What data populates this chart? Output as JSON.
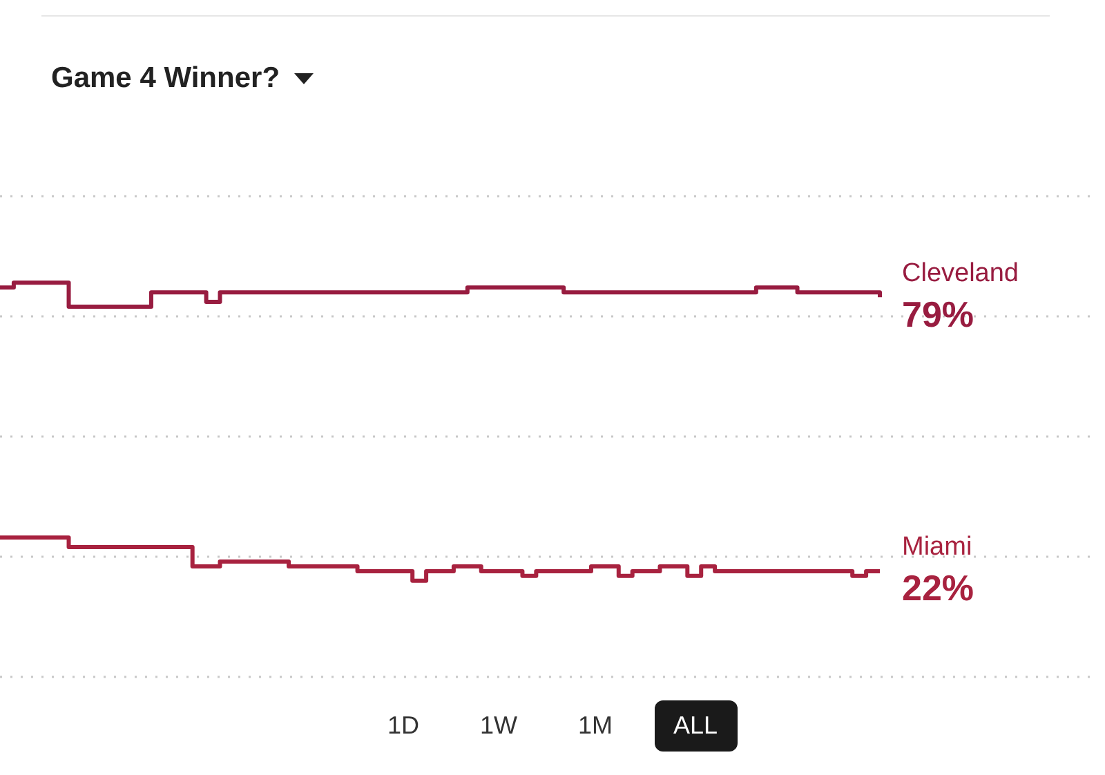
{
  "chart_data": {
    "type": "step",
    "title": "Game 4 Winner?",
    "categories": [
      null,
      null,
      null,
      null,
      null,
      null,
      null,
      null,
      null,
      null,
      null,
      null,
      null,
      null,
      null,
      null,
      null,
      null,
      null,
      null,
      null,
      null,
      null,
      null,
      null,
      null,
      null,
      null,
      null,
      null,
      null,
      null,
      null,
      null,
      null,
      null,
      null,
      null,
      null,
      null,
      null,
      null,
      null,
      null,
      null,
      null,
      null,
      null,
      null,
      null,
      null,
      null,
      null,
      null,
      null,
      null,
      null,
      null,
      null,
      null,
      null,
      null,
      null,
      null,
      null
    ],
    "series": [
      {
        "name": "Cleveland",
        "color": "#981c40",
        "values": [
          81,
          82,
          82,
          82,
          82,
          77,
          77,
          77,
          77,
          77,
          77,
          80,
          80,
          80,
          80,
          78,
          80,
          80,
          80,
          80,
          80,
          80,
          80,
          80,
          80,
          80,
          80,
          80,
          80,
          80,
          80,
          80,
          80,
          80,
          81,
          81,
          81,
          81,
          81,
          81,
          81,
          80,
          80,
          80,
          80,
          80,
          80,
          80,
          80,
          80,
          80,
          80,
          80,
          80,
          80,
          81,
          81,
          81,
          80,
          80,
          80,
          80,
          80,
          80,
          79
        ],
        "value_labels": [
          null,
          null,
          null,
          null,
          null,
          null,
          null,
          null,
          null,
          null,
          null,
          null,
          null,
          null,
          null,
          null,
          null,
          null,
          null,
          null,
          null,
          null,
          null,
          null,
          null,
          null,
          null,
          null,
          null,
          null,
          null,
          null,
          null,
          null,
          null,
          null,
          null,
          null,
          null,
          null,
          null,
          null,
          null,
          null,
          null,
          null,
          null,
          null,
          null,
          null,
          null,
          null,
          null,
          null,
          null,
          null,
          null,
          null,
          null,
          null,
          null,
          null,
          null,
          null,
          "79%"
        ]
      },
      {
        "name": "Miami",
        "color": "#a8223f",
        "values": [
          29,
          29,
          29,
          29,
          29,
          27,
          27,
          27,
          27,
          27,
          27,
          27,
          27,
          27,
          23,
          23,
          24,
          24,
          24,
          24,
          24,
          23,
          23,
          23,
          23,
          23,
          22,
          22,
          22,
          22,
          20,
          22,
          22,
          23,
          23,
          22,
          22,
          22,
          21,
          22,
          22,
          22,
          22,
          23,
          23,
          21,
          22,
          22,
          23,
          23,
          21,
          23,
          22,
          22,
          22,
          22,
          22,
          22,
          22,
          22,
          22,
          22,
          21,
          22,
          22
        ],
        "value_labels": [
          null,
          null,
          null,
          null,
          null,
          null,
          null,
          null,
          null,
          null,
          null,
          null,
          null,
          null,
          null,
          null,
          null,
          null,
          null,
          null,
          null,
          null,
          null,
          null,
          null,
          null,
          null,
          null,
          null,
          null,
          null,
          null,
          null,
          null,
          null,
          null,
          null,
          null,
          null,
          null,
          null,
          null,
          null,
          null,
          null,
          null,
          null,
          null,
          null,
          null,
          null,
          null,
          null,
          null,
          null,
          null,
          null,
          null,
          null,
          null,
          null,
          null,
          null,
          null,
          "22%"
        ]
      }
    ],
    "ylim": [
      0,
      100
    ],
    "yticks": [
      {
        "value": 0,
        "label": null
      },
      {
        "value": 25,
        "label": null
      },
      {
        "value": 50,
        "label": null
      },
      {
        "value": 75,
        "label": null
      },
      {
        "value": 100,
        "label": null
      }
    ],
    "grid": "y",
    "legend": false,
    "annotations": [
      "1D",
      "1W",
      "1M",
      "ALL"
    ]
  }
}
